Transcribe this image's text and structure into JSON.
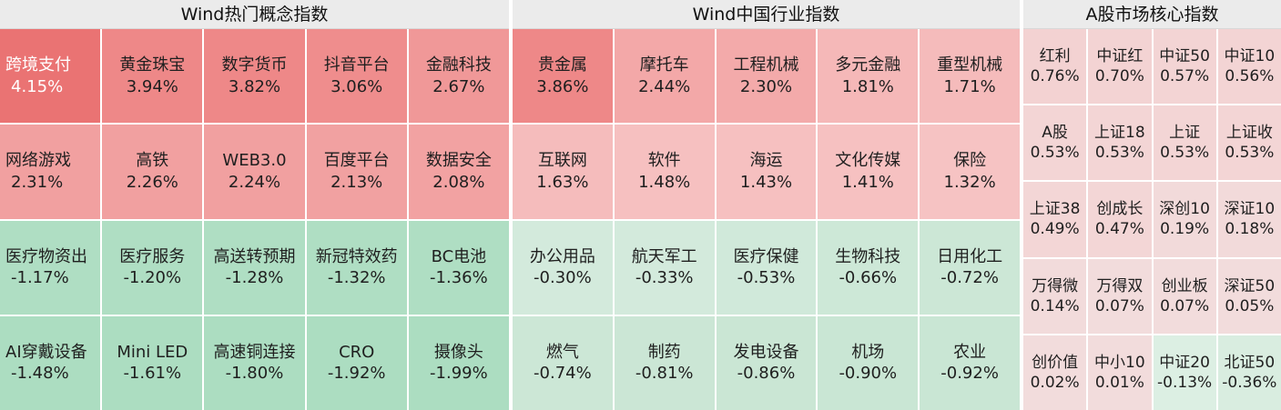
{
  "panels": [
    {
      "title": "Wind热门概念指数",
      "cols": 5,
      "items": [
        {
          "name": "跨境支付",
          "value": "4.15%",
          "color": "#ea7373"
        },
        {
          "name": "黄金珠宝",
          "value": "3.94%",
          "color": "#ee8888"
        },
        {
          "name": "数字货币",
          "value": "3.82%",
          "color": "#ee8888"
        },
        {
          "name": "抖音平台",
          "value": "3.06%",
          "color": "#ef8d8d"
        },
        {
          "name": "金融科技",
          "value": "2.67%",
          "color": "#f09898"
        },
        {
          "name": "网络游戏",
          "value": "2.31%",
          "color": "#f1a0a0"
        },
        {
          "name": "高铁",
          "value": "2.26%",
          "color": "#f1a0a0"
        },
        {
          "name": "WEB3.0",
          "value": "2.24%",
          "color": "#f1a0a0"
        },
        {
          "name": "百度平台",
          "value": "2.13%",
          "color": "#f1a1a1"
        },
        {
          "name": "数据安全",
          "value": "2.08%",
          "color": "#f2a2a2"
        },
        {
          "name": "医疗物资出",
          "value": "-1.17%",
          "color": "#afdec3"
        },
        {
          "name": "医疗服务",
          "value": "-1.20%",
          "color": "#afdec3"
        },
        {
          "name": "高送转预期",
          "value": "-1.28%",
          "color": "#afdec3"
        },
        {
          "name": "新冠特效药",
          "value": "-1.32%",
          "color": "#afdec3"
        },
        {
          "name": "BC电池",
          "value": "-1.36%",
          "color": "#afdec3"
        },
        {
          "name": "AI穿戴设备",
          "value": "-1.48%",
          "color": "#acddc1"
        },
        {
          "name": "Mini LED",
          "value": "-1.61%",
          "color": "#acddc1"
        },
        {
          "name": "高速铜连接",
          "value": "-1.80%",
          "color": "#acddc1"
        },
        {
          "name": "CRO",
          "value": "-1.92%",
          "color": "#acddc1"
        },
        {
          "name": "摄像头",
          "value": "-1.99%",
          "color": "#acddc1"
        }
      ]
    },
    {
      "title": "Wind中国行业指数",
      "cols": 5,
      "items": [
        {
          "name": "贵金属",
          "value": "3.86%",
          "color": "#ee8888"
        },
        {
          "name": "摩托车",
          "value": "2.44%",
          "color": "#f3a8a8"
        },
        {
          "name": "工程机械",
          "value": "2.30%",
          "color": "#f3aaaa"
        },
        {
          "name": "多元金融",
          "value": "1.81%",
          "color": "#f5b8b8"
        },
        {
          "name": "重型机械",
          "value": "1.71%",
          "color": "#f5bbbb"
        },
        {
          "name": "互联网",
          "value": "1.63%",
          "color": "#f5bcbc"
        },
        {
          "name": "软件",
          "value": "1.48%",
          "color": "#f6c0c0"
        },
        {
          "name": "海运",
          "value": "1.43%",
          "color": "#f6c0c0"
        },
        {
          "name": "文化传媒",
          "value": "1.41%",
          "color": "#f6c1c1"
        },
        {
          "name": "保险",
          "value": "1.32%",
          "color": "#f6c3c3"
        },
        {
          "name": "办公用品",
          "value": "-0.30%",
          "color": "#d3eadc"
        },
        {
          "name": "航天军工",
          "value": "-0.33%",
          "color": "#d3eadc"
        },
        {
          "name": "医疗保健",
          "value": "-0.53%",
          "color": "#d0e9da"
        },
        {
          "name": "生物科技",
          "value": "-0.66%",
          "color": "#cde8d7"
        },
        {
          "name": "日用化工",
          "value": "-0.72%",
          "color": "#cce7d6"
        },
        {
          "name": "燃气",
          "value": "-0.74%",
          "color": "#cce7d6"
        },
        {
          "name": "制药",
          "value": "-0.81%",
          "color": "#cbe6d5"
        },
        {
          "name": "发电设备",
          "value": "-0.86%",
          "color": "#cae6d4"
        },
        {
          "name": "机场",
          "value": "-0.90%",
          "color": "#c9e6d4"
        },
        {
          "name": "农业",
          "value": "-0.92%",
          "color": "#c9e6d4"
        }
      ]
    },
    {
      "title": "A股市场核心指数",
      "cols": 4,
      "items": [
        {
          "name": "红利",
          "value": "0.76%",
          "color": "#f3d2d2"
        },
        {
          "name": "中证红",
          "value": "0.70%",
          "color": "#f3d3d3"
        },
        {
          "name": "中证50",
          "value": "0.57%",
          "color": "#f3d4d4"
        },
        {
          "name": "中证10",
          "value": "0.56%",
          "color": "#f3d4d4"
        },
        {
          "name": "A股",
          "value": "0.53%",
          "color": "#f3d5d5"
        },
        {
          "name": "上证18",
          "value": "0.53%",
          "color": "#f3d5d5"
        },
        {
          "name": "上证",
          "value": "0.53%",
          "color": "#f3d5d5"
        },
        {
          "name": "上证收",
          "value": "0.53%",
          "color": "#f3d5d5"
        },
        {
          "name": "上证38",
          "value": "0.49%",
          "color": "#f3d6d6"
        },
        {
          "name": "创成长",
          "value": "0.47%",
          "color": "#f3d6d6"
        },
        {
          "name": "深创10",
          "value": "0.19%",
          "color": "#f2dada"
        },
        {
          "name": "深证10",
          "value": "0.18%",
          "color": "#f2dada"
        },
        {
          "name": "万得微",
          "value": "0.14%",
          "color": "#f2dbdb"
        },
        {
          "name": "万得双",
          "value": "0.07%",
          "color": "#f2dcdc"
        },
        {
          "name": "创业板",
          "value": "0.07%",
          "color": "#f2dcdc"
        },
        {
          "name": "深证50",
          "value": "0.05%",
          "color": "#f2dcdc"
        },
        {
          "name": "创价值",
          "value": "0.02%",
          "color": "#f2dcdc"
        },
        {
          "name": "中小10",
          "value": "0.01%",
          "color": "#f2dcdc"
        },
        {
          "name": "中证20",
          "value": "-0.13%",
          "color": "#dcefe3"
        },
        {
          "name": "北证50",
          "value": "-0.36%",
          "color": "#d9ede0"
        }
      ]
    }
  ]
}
